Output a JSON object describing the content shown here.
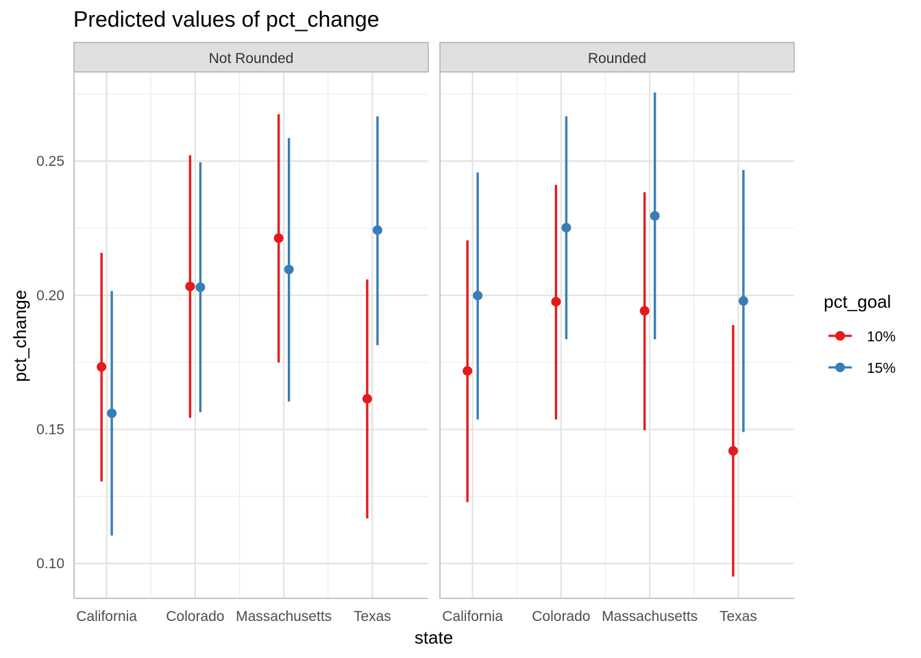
{
  "chart_data": {
    "type": "scatter",
    "title": "Predicted values of pct_change",
    "xlabel": "state",
    "ylabel": "pct_change",
    "ylim": [
      0.087,
      0.283
    ],
    "y_ticks": [
      0.1,
      0.15,
      0.2,
      0.25
    ],
    "y_tick_labels": [
      "0.10",
      "0.15",
      "0.20",
      "0.25"
    ],
    "categories": [
      "California",
      "Colorado",
      "Massachusetts",
      "Texas"
    ],
    "grid": true,
    "legend": {
      "title": "pct_goal",
      "placement": "right",
      "entries": [
        "10%",
        "15%"
      ]
    },
    "colors": {
      "10%": "#e41a1c",
      "15%": "#377eb8"
    },
    "panels": [
      {
        "label": "Not Rounded",
        "series": [
          {
            "name": "10%",
            "values": [
              0.1733,
              0.2033,
              0.2213,
              0.1614
            ],
            "lower": [
              0.1306,
              0.1543,
              0.1749,
              0.1168
            ],
            "upper": [
              0.2158,
              0.2522,
              0.2675,
              0.2059
            ]
          },
          {
            "name": "15%",
            "values": [
              0.156,
              0.203,
              0.2096,
              0.2243
            ],
            "lower": [
              0.1104,
              0.1564,
              0.1604,
              0.1814
            ],
            "upper": [
              0.2016,
              0.2496,
              0.2586,
              0.2667
            ]
          }
        ]
      },
      {
        "label": "Rounded",
        "series": [
          {
            "name": "10%",
            "values": [
              0.1718,
              0.1976,
              0.1942,
              0.142
            ],
            "lower": [
              0.1229,
              0.1537,
              0.1497,
              0.0951
            ],
            "upper": [
              0.2205,
              0.2412,
              0.2384,
              0.1889
            ]
          },
          {
            "name": "15%",
            "values": [
              0.1999,
              0.2252,
              0.2296,
              0.1979
            ],
            "lower": [
              0.1537,
              0.1836,
              0.1836,
              0.149
            ],
            "upper": [
              0.2458,
              0.2667,
              0.2756,
              0.2467
            ]
          }
        ]
      }
    ]
  }
}
